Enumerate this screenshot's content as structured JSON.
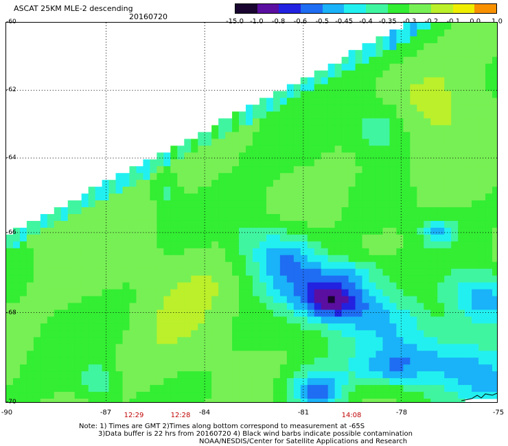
{
  "header": {
    "title": "ASCAT 25KM MLE-2 descending",
    "date": "20160720"
  },
  "colorbar": {
    "labels": [
      "-15.0",
      "-1.0",
      "-0.8",
      "-0.6",
      "-0.5",
      "-0.45",
      "-0.4",
      "-0.35",
      "-0.3",
      "-0.2",
      "-0.1",
      "0.0",
      "1.0"
    ],
    "colors": [
      "#1a0530",
      "#5a0fa0",
      "#2222e0",
      "#1f6df2",
      "#1ab2f8",
      "#22f0f0",
      "#40f5a0",
      "#33ee33",
      "#77f055",
      "#bbf02a",
      "#f0ee00",
      "#f89000",
      "#f02800"
    ]
  },
  "map": {
    "lat_labels": [
      "-60",
      "-62",
      "-64",
      "-66",
      "-68",
      "-70"
    ],
    "lon_labels": [
      "-90",
      "-87",
      "-84",
      "-81",
      "-78",
      "-75"
    ],
    "pass_times": [
      "12:29",
      "12:28",
      "14:08"
    ]
  },
  "notes": {
    "line1": "Note: 1) Times are GMT 2)Times along bottom correspond to measurement at -65S",
    "line2": "3)Data buffer is 22 hrs from 20160720 4) Black wind barbs indicate possible contamination",
    "line3": "NOAA/NESDIS/Center for Satellite Applications and Research"
  }
}
